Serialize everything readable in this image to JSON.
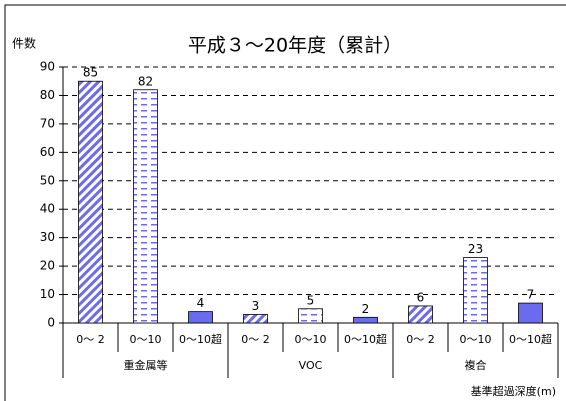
{
  "chart_data": {
    "type": "bar",
    "title": "平成３～20年度（累計）",
    "y_label": "件数",
    "x_label": "基準超過深度(m)",
    "categories": [
      "0～ 2",
      "0～10",
      "0～10超",
      "0～ 2",
      "0～10",
      "0～10超",
      "0～ 2",
      "0～10",
      "0～10超"
    ],
    "groups": [
      "重金属等",
      "VOC",
      "複合"
    ],
    "values": [
      85,
      82,
      4,
      3,
      5,
      2,
      6,
      23,
      7
    ],
    "bar_styles": [
      "hatch",
      "dash",
      "solid"
    ],
    "color": "#6b6bf0",
    "ylim": [
      0,
      90
    ],
    "yticks": [
      0,
      10,
      20,
      30,
      40,
      50,
      60,
      70,
      80,
      90
    ],
    "grid": true
  }
}
